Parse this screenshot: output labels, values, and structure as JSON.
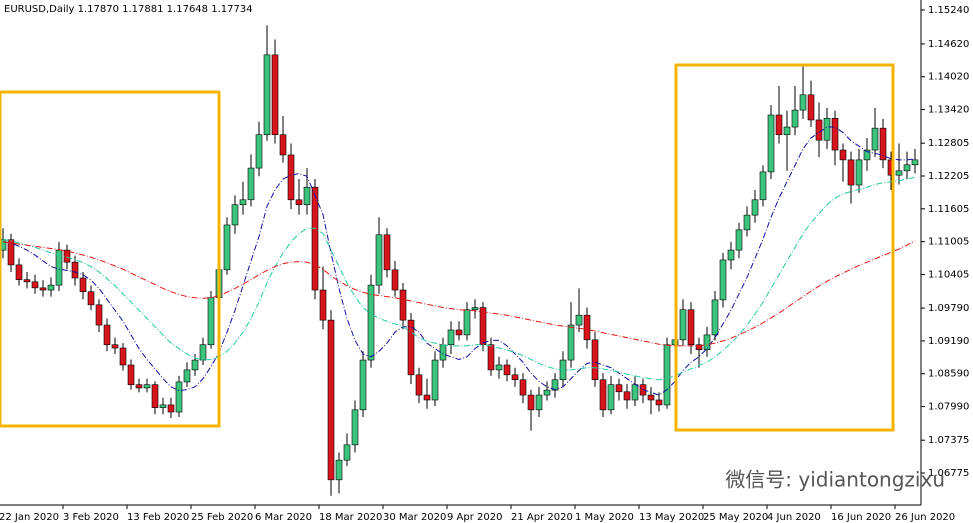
{
  "chart_data": {
    "type": "candlestick",
    "title": "EURUSD,Daily  1.17870 1.17881 1.17648 1.17734",
    "watermark": "微信号: yidiantongzixu",
    "up_color": "#3cc47c",
    "down_color": "#d9141c",
    "grid": false,
    "ylim": [
      1.0619,
      1.15423
    ],
    "yticks": [
      {
        "value": 1.1524,
        "label": "1.15240"
      },
      {
        "value": 1.1462,
        "label": "1.14620"
      },
      {
        "value": 1.1402,
        "label": "1.14020"
      },
      {
        "value": 1.1342,
        "label": "1.13420"
      },
      {
        "value": 1.12805,
        "label": "1.12805"
      },
      {
        "value": 1.12205,
        "label": "1.12205"
      },
      {
        "value": 1.11605,
        "label": "1.11605"
      },
      {
        "value": 1.11005,
        "label": "1.11005"
      },
      {
        "value": 1.10405,
        "label": "1.10405"
      },
      {
        "value": 1.0979,
        "label": "1.09790"
      },
      {
        "value": 1.0919,
        "label": "1.09190"
      },
      {
        "value": 1.0859,
        "label": "1.08590"
      },
      {
        "value": 1.0799,
        "label": "1.07990"
      },
      {
        "value": 1.07375,
        "label": "1.07375"
      },
      {
        "value": 1.06775,
        "label": "1.06775"
      }
    ],
    "categories": [
      "22 Jan 2020",
      null,
      null,
      null,
      null,
      null,
      null,
      null,
      "3 Feb 2020",
      null,
      null,
      null,
      null,
      null,
      null,
      null,
      "13 Feb 2020",
      null,
      null,
      null,
      null,
      null,
      null,
      null,
      "25 Feb 2020",
      null,
      null,
      null,
      null,
      null,
      null,
      null,
      "6 Mar 2020",
      null,
      null,
      null,
      null,
      null,
      null,
      null,
      "18 Mar 2020",
      null,
      null,
      null,
      null,
      null,
      null,
      null,
      "30 Mar 2020",
      null,
      null,
      null,
      null,
      null,
      null,
      null,
      "9 Apr 2020",
      null,
      null,
      null,
      null,
      null,
      null,
      null,
      "21 Apr 2020",
      null,
      null,
      null,
      null,
      null,
      null,
      null,
      "1 May 2020",
      null,
      null,
      null,
      null,
      null,
      null,
      null,
      "13 May 2020",
      null,
      null,
      null,
      null,
      null,
      null,
      null,
      "25 May 2020",
      null,
      null,
      null,
      null,
      null,
      null,
      null,
      "4 Jun 2020",
      null,
      null,
      null,
      null,
      null,
      null,
      null,
      "16 Jun 2020",
      null,
      null,
      null,
      null,
      null,
      null,
      null,
      "26 Jun 2020",
      null,
      null
    ],
    "ohlc": [
      [
        1.1085,
        1.1125,
        1.107,
        1.1104
      ],
      [
        1.1104,
        1.1115,
        1.1045,
        1.1058
      ],
      [
        1.1058,
        1.107,
        1.102,
        1.1031
      ],
      [
        1.1031,
        1.1045,
        1.1015,
        1.1027
      ],
      [
        1.1027,
        1.104,
        1.1005,
        1.1016
      ],
      [
        1.1016,
        1.103,
        1.1,
        1.1012
      ],
      [
        1.1012,
        1.1035,
        1.1,
        1.1021
      ],
      [
        1.1021,
        1.11,
        1.101,
        1.1085
      ],
      [
        1.1085,
        1.1095,
        1.105,
        1.1063
      ],
      [
        1.1063,
        1.1075,
        1.102,
        1.1034
      ],
      [
        1.1034,
        1.1045,
        1.0995,
        1.1009
      ],
      [
        1.1009,
        1.102,
        1.0975,
        1.0985
      ],
      [
        1.0985,
        1.0995,
        1.0935,
        1.0948
      ],
      [
        1.0948,
        1.096,
        1.09,
        1.0912
      ],
      [
        1.0912,
        1.0925,
        1.0895,
        1.0906
      ],
      [
        1.0906,
        1.0915,
        1.0865,
        1.0875
      ],
      [
        1.0875,
        1.0885,
        1.083,
        1.0839
      ],
      [
        1.0839,
        1.085,
        1.0825,
        1.0833
      ],
      [
        1.0833,
        1.085,
        1.0825,
        1.0839
      ],
      [
        1.0839,
        1.0845,
        1.0785,
        1.0797
      ],
      [
        1.0797,
        1.0815,
        1.0785,
        1.0802
      ],
      [
        1.0802,
        1.0815,
        1.0778,
        1.0789
      ],
      [
        1.0789,
        1.0855,
        1.078,
        1.0844
      ],
      [
        1.0844,
        1.088,
        1.0835,
        1.0866
      ],
      [
        1.0866,
        1.0895,
        1.0855,
        1.0884
      ],
      [
        1.0884,
        1.0925,
        1.0875,
        1.0912
      ],
      [
        1.0912,
        1.101,
        1.0905,
        1.0998
      ],
      [
        1.0998,
        1.1065,
        1.099,
        1.1049
      ],
      [
        1.1049,
        1.1145,
        1.104,
        1.1131
      ],
      [
        1.1131,
        1.1185,
        1.1115,
        1.1168
      ],
      [
        1.1168,
        1.121,
        1.115,
        1.1177
      ],
      [
        1.1177,
        1.126,
        1.1165,
        1.1235
      ],
      [
        1.1235,
        1.132,
        1.122,
        1.1296
      ],
      [
        1.1296,
        1.1496,
        1.1285,
        1.1442
      ],
      [
        1.1442,
        1.147,
        1.128,
        1.1296
      ],
      [
        1.1296,
        1.133,
        1.1245,
        1.1259
      ],
      [
        1.1259,
        1.128,
        1.116,
        1.1177
      ],
      [
        1.1177,
        1.1215,
        1.115,
        1.1168
      ],
      [
        1.1168,
        1.1235,
        1.115,
        1.12
      ],
      [
        1.12,
        1.1215,
        1.0995,
        1.1012
      ],
      [
        1.1012,
        1.1055,
        1.094,
        1.0957
      ],
      [
        1.0957,
        1.0975,
        1.0636,
        1.0665
      ],
      [
        1.0665,
        1.0715,
        1.064,
        1.0701
      ],
      [
        1.0701,
        1.075,
        1.069,
        1.0729
      ],
      [
        1.0729,
        1.081,
        1.0715,
        1.0793
      ],
      [
        1.0793,
        1.09,
        1.078,
        1.0884
      ],
      [
        1.0884,
        1.104,
        1.087,
        1.1021
      ],
      [
        1.1021,
        1.1145,
        1.1005,
        1.1113
      ],
      [
        1.1113,
        1.1125,
        1.1035,
        1.1049
      ],
      [
        1.1049,
        1.1065,
        1.1,
        1.1012
      ],
      [
        1.1012,
        1.1025,
        1.094,
        1.0957
      ],
      [
        1.0957,
        1.097,
        1.084,
        1.0857
      ],
      [
        1.0857,
        1.087,
        1.0805,
        1.082
      ],
      [
        1.082,
        1.085,
        1.0795,
        1.0811
      ],
      [
        1.0811,
        1.09,
        1.08,
        1.0884
      ],
      [
        1.0884,
        1.0925,
        1.087,
        1.0912
      ],
      [
        1.0912,
        1.0955,
        1.0895,
        1.0939
      ],
      [
        1.0939,
        1.0955,
        1.092,
        1.093
      ],
      [
        1.093,
        1.099,
        1.092,
        1.0976
      ],
      [
        1.0976,
        1.0995,
        1.096,
        1.098
      ],
      [
        1.098,
        1.099,
        1.09,
        1.0912
      ],
      [
        1.0912,
        1.0925,
        1.0855,
        1.0866
      ],
      [
        1.0866,
        1.089,
        1.085,
        1.0875
      ],
      [
        1.0875,
        1.0885,
        1.0845,
        1.0857
      ],
      [
        1.0857,
        1.087,
        1.0835,
        1.0848
      ],
      [
        1.0848,
        1.086,
        1.0805,
        1.082
      ],
      [
        1.082,
        1.083,
        1.0755,
        1.0793
      ],
      [
        1.0793,
        1.0835,
        1.078,
        1.082
      ],
      [
        1.082,
        1.0845,
        1.081,
        1.0829
      ],
      [
        1.0829,
        1.086,
        1.0815,
        1.0848
      ],
      [
        1.0848,
        1.09,
        1.0835,
        1.0884
      ],
      [
        1.0884,
        1.099,
        1.087,
        1.0948
      ],
      [
        1.0948,
        1.1015,
        1.0935,
        1.0966
      ],
      [
        1.0966,
        1.098,
        1.0905,
        1.0921
      ],
      [
        1.0921,
        1.0935,
        1.0835,
        1.0848
      ],
      [
        1.0848,
        1.086,
        1.078,
        1.0793
      ],
      [
        1.0793,
        1.0855,
        1.0785,
        1.0839
      ],
      [
        1.0839,
        1.085,
        1.081,
        1.0826
      ],
      [
        1.0826,
        1.084,
        1.0795,
        1.0811
      ],
      [
        1.0811,
        1.0855,
        1.08,
        1.0839
      ],
      [
        1.0839,
        1.085,
        1.0805,
        1.082
      ],
      [
        1.082,
        1.0835,
        1.0785,
        1.0811
      ],
      [
        1.0811,
        1.0825,
        1.079,
        1.0802
      ],
      [
        1.0802,
        1.0925,
        1.0795,
        1.0912
      ],
      [
        1.0912,
        1.094,
        1.0895,
        1.0921
      ],
      [
        1.0921,
        1.0995,
        1.091,
        1.0976
      ],
      [
        1.0976,
        1.099,
        1.0895,
        1.0912
      ],
      [
        1.0912,
        1.0925,
        1.087,
        1.0903
      ],
      [
        1.0903,
        1.0945,
        1.089,
        1.093
      ],
      [
        1.093,
        1.101,
        1.092,
        1.0994
      ],
      [
        1.0994,
        1.108,
        1.098,
        1.1067
      ],
      [
        1.1067,
        1.11,
        1.105,
        1.1085
      ],
      [
        1.1085,
        1.1135,
        1.107,
        1.1122
      ],
      [
        1.1122,
        1.1165,
        1.111,
        1.1149
      ],
      [
        1.1149,
        1.1195,
        1.1135,
        1.1177
      ],
      [
        1.1177,
        1.124,
        1.1165,
        1.1228
      ],
      [
        1.1228,
        1.135,
        1.1215,
        1.1332
      ],
      [
        1.1332,
        1.1385,
        1.128,
        1.1296
      ],
      [
        1.1296,
        1.134,
        1.123,
        1.131
      ],
      [
        1.131,
        1.1385,
        1.1295,
        1.1341
      ],
      [
        1.1341,
        1.1422,
        1.1325,
        1.1369
      ],
      [
        1.1369,
        1.1395,
        1.131,
        1.1323
      ],
      [
        1.1323,
        1.1355,
        1.1255,
        1.1286
      ],
      [
        1.1286,
        1.1345,
        1.127,
        1.1326
      ],
      [
        1.1326,
        1.134,
        1.124,
        1.1268
      ],
      [
        1.1268,
        1.128,
        1.121,
        1.125
      ],
      [
        1.125,
        1.1265,
        1.117,
        1.1204
      ],
      [
        1.1204,
        1.127,
        1.119,
        1.125
      ],
      [
        1.125,
        1.129,
        1.123,
        1.1268
      ],
      [
        1.1268,
        1.1345,
        1.1255,
        1.1308
      ],
      [
        1.1308,
        1.1325,
        1.1235,
        1.125
      ],
      [
        1.125,
        1.1265,
        1.1195,
        1.1222
      ],
      [
        1.1222,
        1.128,
        1.1205,
        1.123
      ],
      [
        1.123,
        1.1265,
        1.1215,
        1.1241
      ],
      [
        1.1241,
        1.127,
        1.1225,
        1.125
      ]
    ],
    "series": [
      {
        "color": "#1010a0",
        "values": [
          1.11,
          1.1098,
          1.1092,
          1.1085,
          1.1076,
          1.1065,
          1.1055,
          1.105,
          1.1048,
          1.1045,
          1.104,
          1.103,
          1.1015,
          1.0995,
          1.0975,
          1.0955,
          1.093,
          1.0905,
          1.0885,
          1.0868,
          1.085,
          1.0835,
          1.0828,
          1.083,
          1.0835,
          1.085,
          1.0872,
          1.0898,
          1.0935,
          1.0975,
          1.102,
          1.1065,
          1.111,
          1.1165,
          1.1195,
          1.1215,
          1.1222,
          1.1225,
          1.122,
          1.1185,
          1.115,
          1.108,
          1.1015,
          1.096,
          1.092,
          1.0895,
          1.089,
          1.09,
          1.0915,
          1.0935,
          1.0945,
          1.0945,
          1.0935,
          1.0915,
          1.0905,
          1.0895,
          1.089,
          1.0885,
          1.089,
          1.0905,
          1.0915,
          1.092,
          1.092,
          1.091,
          1.0895,
          1.088,
          1.086,
          1.0845,
          1.0835,
          1.083,
          1.0835,
          1.085,
          1.0865,
          1.0878,
          1.088,
          1.0875,
          1.087,
          1.086,
          1.085,
          1.084,
          1.083,
          1.0825,
          1.082,
          1.083,
          1.0845,
          1.0865,
          1.088,
          1.089,
          1.0905,
          1.0925,
          1.095,
          1.0975,
          1.1005,
          1.1035,
          1.107,
          1.1105,
          1.1145,
          1.118,
          1.121,
          1.124,
          1.127,
          1.129,
          1.13,
          1.131,
          1.131,
          1.13,
          1.1285,
          1.1275,
          1.1265,
          1.1262,
          1.1258,
          1.1252,
          1.125,
          1.125,
          1.1252
        ]
      },
      {
        "color": "#22c9a0",
        "values": [
          1.1105,
          1.1102,
          1.1098,
          1.1094,
          1.109,
          1.1085,
          1.108,
          1.1076,
          1.1072,
          1.1068,
          1.1062,
          1.1055,
          1.1045,
          1.1033,
          1.102,
          1.1005,
          1.099,
          1.0975,
          1.096,
          1.0945,
          1.093,
          1.0915,
          1.0905,
          1.0895,
          1.0888,
          1.0884,
          1.0885,
          1.089,
          1.09,
          1.0915,
          1.0935,
          1.096,
          1.099,
          1.1025,
          1.1055,
          1.108,
          1.11,
          1.1115,
          1.1125,
          1.1125,
          1.1115,
          1.1085,
          1.1055,
          1.1025,
          1.1,
          1.098,
          1.0968,
          1.096,
          1.0955,
          1.095,
          1.0945,
          1.0935,
          1.0925,
          1.0918,
          1.0915,
          1.0912,
          1.091,
          1.091,
          1.091,
          1.0912,
          1.0912,
          1.091,
          1.0906,
          1.0902,
          1.0898,
          1.0892,
          1.0885,
          1.0878,
          1.0872,
          1.0868,
          1.0866,
          1.0866,
          1.0868,
          1.087,
          1.087,
          1.0868,
          1.0865,
          1.0862,
          1.0858,
          1.0855,
          1.0852,
          1.085,
          1.0848,
          1.085,
          1.0855,
          1.0862,
          1.0868,
          1.0874,
          1.088,
          1.089,
          1.0902,
          1.0915,
          1.093,
          1.0948,
          1.0968,
          1.099,
          1.1015,
          1.104,
          1.1065,
          1.109,
          1.1115,
          1.1135,
          1.1152,
          1.1168,
          1.118,
          1.1188,
          1.1192,
          1.1196,
          1.12,
          1.1205,
          1.1208,
          1.121,
          1.1212,
          1.1215,
          1.1218
        ]
      },
      {
        "color": "#e01818",
        "values": [
          1.11,
          1.1098,
          1.1096,
          1.1094,
          1.1092,
          1.109,
          1.1088,
          1.1086,
          1.1083,
          1.108,
          1.1076,
          1.1072,
          1.1067,
          1.1062,
          1.1056,
          1.105,
          1.1043,
          1.1036,
          1.1029,
          1.1022,
          1.1015,
          1.1009,
          1.1004,
          1.1,
          1.0998,
          1.0997,
          1.0998,
          1.1002,
          1.1008,
          1.1015,
          1.1023,
          1.1031,
          1.104,
          1.1048,
          1.1055,
          1.106,
          1.1063,
          1.1064,
          1.1063,
          1.1058,
          1.105,
          1.1038,
          1.1028,
          1.102,
          1.1013,
          1.1008,
          1.1004,
          1.1002,
          1.1,
          1.0998,
          1.0995,
          1.0992,
          1.0989,
          1.0986,
          1.0983,
          1.098,
          1.0978,
          1.0976,
          1.0975,
          1.0974,
          1.0972,
          1.097,
          1.0968,
          1.0966,
          1.0963,
          1.096,
          1.0957,
          1.0954,
          1.0951,
          1.0948,
          1.0946,
          1.0944,
          1.0942,
          1.094,
          1.0937,
          1.0934,
          1.0931,
          1.0928,
          1.0925,
          1.0922,
          1.0919,
          1.0916,
          1.0913,
          1.0911,
          1.091,
          1.091,
          1.091,
          1.091,
          1.0912,
          1.0915,
          1.0919,
          1.0924,
          1.093,
          1.0937,
          1.0944,
          1.0952,
          1.0961,
          1.097,
          1.098,
          1.099,
          1.1,
          1.101,
          1.1019,
          1.1028,
          1.1036,
          1.1043,
          1.105,
          1.1057,
          1.1063,
          1.1069,
          1.1075,
          1.1081,
          1.1087,
          1.1094,
          1.1102
        ]
      }
    ]
  }
}
